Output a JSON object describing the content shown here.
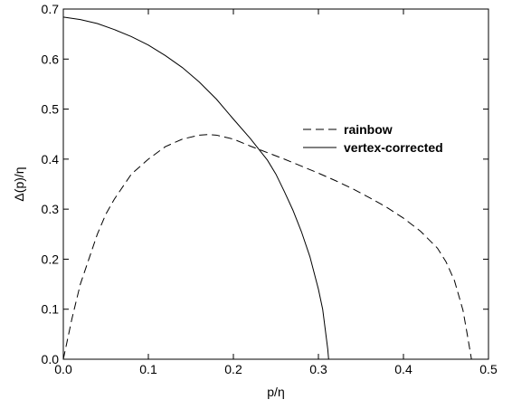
{
  "chart_data": {
    "type": "line",
    "title": "",
    "xlabel": "p/η",
    "ylabel": "Δ(p)/η",
    "xlim": [
      0.0,
      0.5
    ],
    "ylim": [
      0.0,
      0.7
    ],
    "x_ticks": [
      0.0,
      0.1,
      0.2,
      0.3,
      0.4,
      0.5
    ],
    "x_tick_labels": [
      "0.0",
      "0.1",
      "0.2",
      "0.3",
      "0.4",
      "0.5"
    ],
    "y_ticks": [
      0.0,
      0.1,
      0.2,
      0.3,
      0.4,
      0.5,
      0.6,
      0.7
    ],
    "y_tick_labels": [
      "0.0",
      "0.1",
      "0.2",
      "0.3",
      "0.4",
      "0.5",
      "0.6",
      "0.7"
    ],
    "grid": false,
    "legend_position": "right",
    "series": [
      {
        "name": "rainbow",
        "style": "dashed",
        "color": "#000000",
        "x": [
          0.0,
          0.005,
          0.01,
          0.02,
          0.03,
          0.04,
          0.05,
          0.06,
          0.08,
          0.1,
          0.12,
          0.14,
          0.16,
          0.17,
          0.18,
          0.2,
          0.22,
          0.24,
          0.26,
          0.28,
          0.3,
          0.32,
          0.34,
          0.36,
          0.38,
          0.4,
          0.42,
          0.44,
          0.45,
          0.46,
          0.47,
          0.475,
          0.48
        ],
        "y": [
          0.0,
          0.04,
          0.08,
          0.15,
          0.2,
          0.25,
          0.29,
          0.32,
          0.37,
          0.4,
          0.425,
          0.44,
          0.448,
          0.449,
          0.448,
          0.44,
          0.426,
          0.413,
          0.4,
          0.386,
          0.372,
          0.357,
          0.341,
          0.323,
          0.304,
          0.282,
          0.256,
          0.222,
          0.195,
          0.157,
          0.098,
          0.05,
          0.0
        ]
      },
      {
        "name": "vertex-corrected",
        "style": "solid",
        "color": "#000000",
        "x": [
          0.0,
          0.02,
          0.04,
          0.06,
          0.08,
          0.1,
          0.12,
          0.14,
          0.16,
          0.18,
          0.2,
          0.22,
          0.24,
          0.25,
          0.26,
          0.27,
          0.28,
          0.29,
          0.3,
          0.305,
          0.308,
          0.311,
          0.312
        ],
        "y": [
          0.684,
          0.679,
          0.671,
          0.659,
          0.645,
          0.628,
          0.607,
          0.583,
          0.554,
          0.52,
          0.48,
          0.441,
          0.398,
          0.37,
          0.335,
          0.298,
          0.255,
          0.205,
          0.14,
          0.1,
          0.06,
          0.02,
          0.0
        ]
      }
    ]
  }
}
